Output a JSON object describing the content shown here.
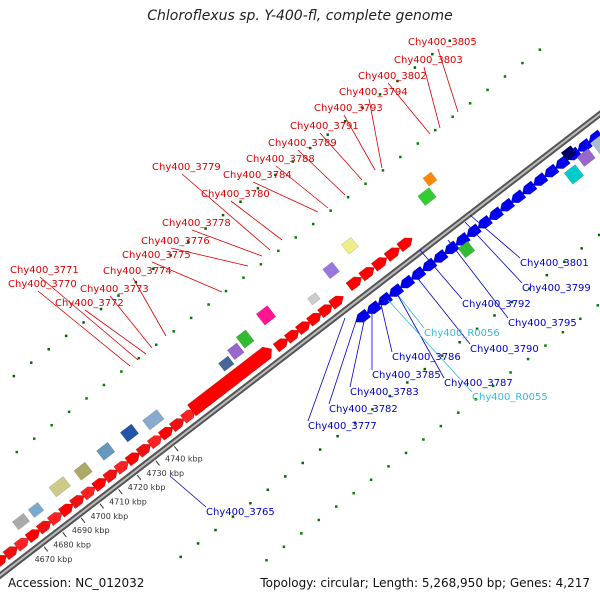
{
  "title": "Chloroflexus sp. Y-400-fl, complete genome",
  "footer": {
    "accession": "Accession: NC_012032",
    "summary": "Topology: circular; Length: 5,268,950 bp; Genes: 4,217"
  },
  "colors": {
    "forward_label": "#dd0000",
    "reverse_label": "#0000cc",
    "rna_label": "#33bbdd",
    "forward_gene": "#ff0000",
    "reverse_gene": "#0000ee",
    "backbone": "#888888"
  },
  "scale_ticks": [
    {
      "label": "4670 kbp",
      "kbp": 4670
    },
    {
      "label": "4680 kbp",
      "kbp": 4680
    },
    {
      "label": "4690 kbp",
      "kbp": 4690
    },
    {
      "label": "4700 kbp",
      "kbp": 4700
    },
    {
      "label": "4710 kbp",
      "kbp": 4710
    },
    {
      "label": "4720 kbp",
      "kbp": 4720
    },
    {
      "label": "4730 kbp",
      "kbp": 4730
    },
    {
      "label": "4740 kbp",
      "kbp": 4740
    }
  ],
  "gene_labels": [
    {
      "text": "Chy400_3805",
      "strand": "forward"
    },
    {
      "text": "Chy400_3803",
      "strand": "forward"
    },
    {
      "text": "Chy400_3802",
      "strand": "forward"
    },
    {
      "text": "Chy400_3794",
      "strand": "forward"
    },
    {
      "text": "Chy400_3793",
      "strand": "forward"
    },
    {
      "text": "Chy400_3791",
      "strand": "forward"
    },
    {
      "text": "Chy400_3789",
      "strand": "forward"
    },
    {
      "text": "Chy400_3788",
      "strand": "forward"
    },
    {
      "text": "Chy400_3784",
      "strand": "forward"
    },
    {
      "text": "Chy400_3779",
      "strand": "forward"
    },
    {
      "text": "Chy400_3780",
      "strand": "forward"
    },
    {
      "text": "Chy400_3778",
      "strand": "forward"
    },
    {
      "text": "Chy400_3776",
      "strand": "forward"
    },
    {
      "text": "Chy400_3775",
      "strand": "forward"
    },
    {
      "text": "Chy400_3771",
      "strand": "forward"
    },
    {
      "text": "Chy400_3774",
      "strand": "forward"
    },
    {
      "text": "Chy400_3770",
      "strand": "forward"
    },
    {
      "text": "Chy400_3773",
      "strand": "forward"
    },
    {
      "text": "Chy400_3772",
      "strand": "forward"
    },
    {
      "text": "Chy400_3801",
      "strand": "reverse"
    },
    {
      "text": "Chy400_3799",
      "strand": "reverse"
    },
    {
      "text": "Chy400_3792",
      "strand": "reverse"
    },
    {
      "text": "Chy400_3795",
      "strand": "reverse"
    },
    {
      "text": "Chy400_R0056",
      "strand": "rna"
    },
    {
      "text": "Chy400_3790",
      "strand": "reverse"
    },
    {
      "text": "Chy400_3786",
      "strand": "reverse"
    },
    {
      "text": "Chy400_3785",
      "strand": "reverse"
    },
    {
      "text": "Chy400_3787",
      "strand": "reverse"
    },
    {
      "text": "Chy400_3783",
      "strand": "reverse"
    },
    {
      "text": "Chy400_R0055",
      "strand": "rna"
    },
    {
      "text": "Chy400_3782",
      "strand": "reverse"
    },
    {
      "text": "Chy400_3777",
      "strand": "reverse"
    },
    {
      "text": "Chy400_3765",
      "strand": "reverse"
    }
  ]
}
